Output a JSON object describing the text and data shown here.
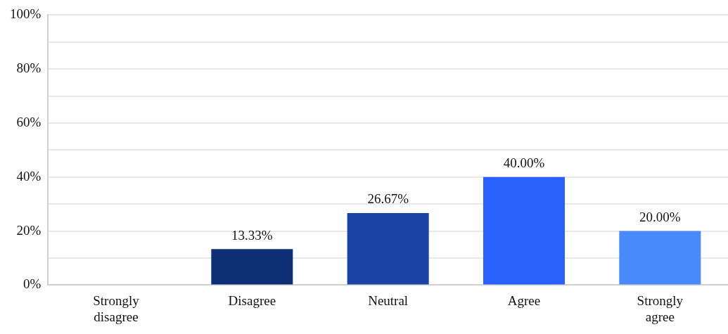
{
  "chart_data": {
    "type": "bar",
    "categories": [
      "Strongly disagree",
      "Disagree",
      "Neutral",
      "Agree",
      "Strongly agree"
    ],
    "values": [
      0,
      13.33,
      26.67,
      40,
      20
    ],
    "colors": [
      "#0d2e73",
      "#0e2f75",
      "#1b43a6",
      "#2962fb",
      "#4889fc"
    ],
    "value_labels": [
      null,
      "13.33%",
      "26.67%",
      "40.00%",
      "20.00%"
    ],
    "ylim": [
      0,
      100
    ],
    "yticks": [
      {
        "value": 0,
        "label": "0%"
      },
      {
        "value": 10,
        "label": null
      },
      {
        "value": 20,
        "label": "20%"
      },
      {
        "value": 30,
        "label": null
      },
      {
        "value": 40,
        "label": "40%"
      },
      {
        "value": 50,
        "label": null
      },
      {
        "value": 60,
        "label": "60%"
      },
      {
        "value": 70,
        "label": null
      },
      {
        "value": 80,
        "label": "80%"
      },
      {
        "value": 90,
        "label": null
      },
      {
        "value": 100,
        "label": "100%"
      }
    ],
    "grid": "y",
    "legend": false
  }
}
